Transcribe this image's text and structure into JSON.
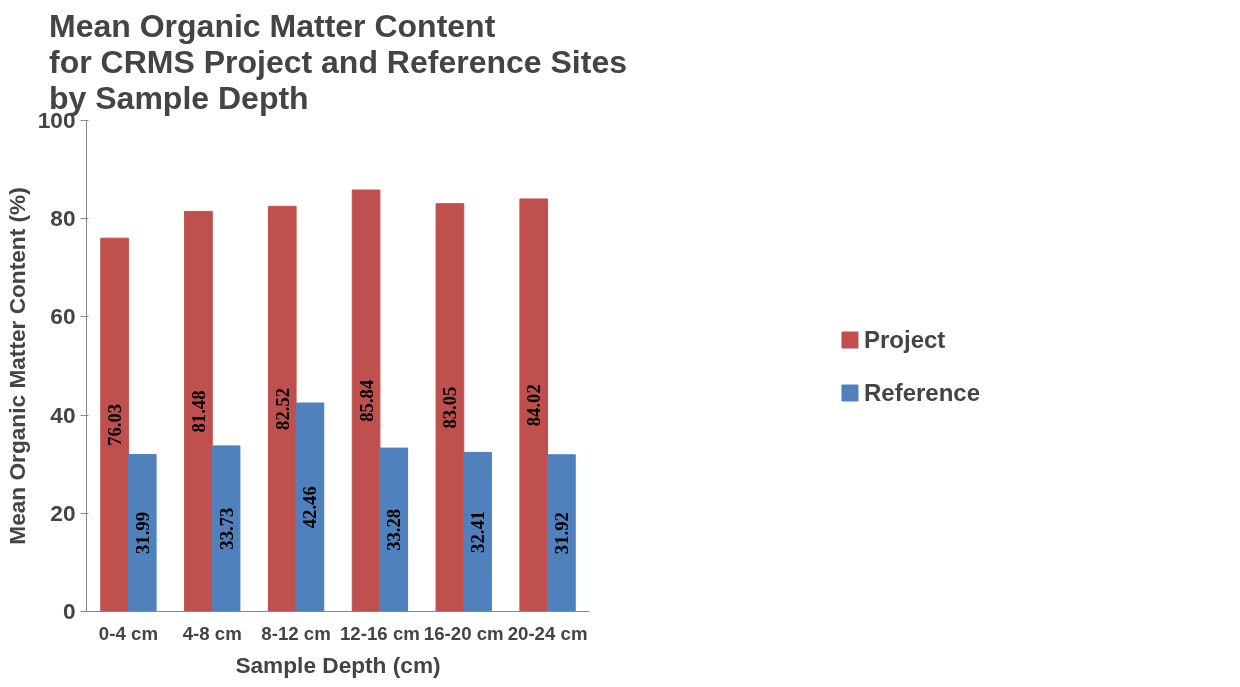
{
  "chart_data": {
    "type": "bar",
    "title": "Mean Organic Matter Content\nfor CRMS Project and Reference Sites\nby Sample Depth",
    "xlabel": "Sample Depth (cm)",
    "ylabel": "Mean Organic Matter Content (%)",
    "categories": [
      "0-4 cm",
      "4-8 cm",
      "8-12 cm",
      "12-16 cm",
      "16-20 cm",
      "20-24 cm"
    ],
    "series": [
      {
        "name": "Project",
        "color": "#c0504d",
        "values": [
          76.03,
          81.48,
          82.52,
          85.84,
          83.05,
          84.02
        ]
      },
      {
        "name": "Reference",
        "color": "#4f81bd",
        "values": [
          31.99,
          33.73,
          42.46,
          33.28,
          32.41,
          31.92
        ]
      }
    ],
    "ylim": [
      0,
      100
    ],
    "yticks": [
      0,
      20,
      40,
      60,
      80,
      100
    ],
    "grid": false,
    "legend": "right",
    "data_labels": true
  }
}
